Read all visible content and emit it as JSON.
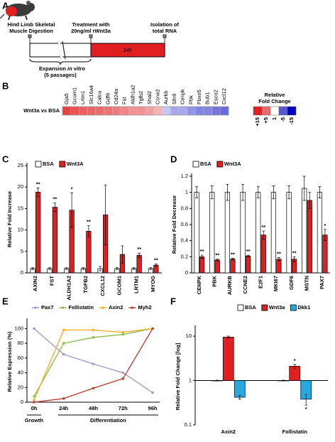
{
  "diagram": {
    "label": "A",
    "steps": [
      [
        "Hind Limb Skeletal",
        "Muscle Digestion"
      ],
      [
        "Treatment with",
        "20ng/ml rWnt3a"
      ],
      [
        "Isolation of",
        "total RNA"
      ]
    ],
    "bar_label": "24h",
    "expansion": "Expansion",
    "expansion_italic": "in vitro",
    "passages": "(5 passages)"
  },
  "chart_data": [
    {
      "label": "B",
      "type": "heatmap",
      "row_label": "Wnt3a vs BSA",
      "categories": [
        "Gja5",
        "Gcom1",
        "Lrtm1",
        "Slc16a4",
        "Calca",
        "Gdf6",
        "Cd24a",
        "Fst",
        "Aldh1a2",
        "Tgfb2",
        "Shal2",
        "Ccne2",
        "Aurkb",
        "Sfn9",
        "Cenpk",
        "Pbk",
        "Fbxo5",
        "Bub1",
        "Esco2",
        "Cxcl12"
      ],
      "values": [
        9,
        7,
        6,
        5.5,
        5,
        4.5,
        4,
        3.5,
        3,
        3,
        2.5,
        2,
        -1.5,
        -2,
        -2,
        -2.5,
        -3,
        -3,
        -3.5,
        -4
      ],
      "pos_color": "#e02020",
      "neg_color": "#0000c0",
      "legend_title": [
        "Relative",
        "Fold Change"
      ],
      "legend_ticks": [
        {
          "value": 15,
          "label": "+15"
        },
        {
          "value": 5,
          "label": "+5"
        },
        1,
        -5,
        -15
      ]
    },
    {
      "label": "C",
      "type": "bar",
      "y_label": "Relative Fold Increase",
      "categories": [
        "AXIN2",
        "FST",
        "ALDH1A2",
        "TGFB2",
        "CXCL12",
        "GCOM1",
        "LRTM1",
        "MYOG"
      ],
      "series": [
        {
          "name": "BSA",
          "color": "#ffffff",
          "values": [
            1,
            1,
            1,
            1,
            1,
            1,
            1,
            1
          ],
          "errors": [
            0.2,
            0.2,
            0.2,
            0.2,
            0.5,
            0.2,
            0.2,
            0.2
          ]
        },
        {
          "name": "Wnt3A",
          "color": "#e02020",
          "values": [
            18.8,
            15.3,
            14.6,
            9.7,
            13.5,
            4.3,
            4.1,
            1.8
          ],
          "errors": [
            1.0,
            1.0,
            4.0,
            1.3,
            7.0,
            2.0,
            0.5,
            0.3
          ],
          "stars": [
            "**",
            "**",
            "*",
            "**",
            null,
            null,
            "**",
            "**"
          ]
        }
      ],
      "ylim": [
        0,
        25
      ],
      "yticks": [
        0,
        5,
        10,
        15,
        20,
        25
      ],
      "legend": "top-left"
    },
    {
      "label": "D",
      "type": "bar",
      "y_label": "Relative Fold Decrease",
      "categories": [
        "CENPK",
        "PBK",
        "AURKB",
        "CCNE2",
        "E2F1",
        "MKI67",
        "GDF6",
        "MSTN",
        "PAX7"
      ],
      "series": [
        {
          "name": "BSA",
          "color": "#ffffff",
          "values": [
            1,
            1,
            1,
            1,
            1,
            1,
            1,
            1.05,
            1
          ],
          "errors": [
            0.07,
            0.08,
            0.1,
            0.1,
            0.07,
            0.08,
            0.08,
            0.15,
            0.07
          ]
        },
        {
          "name": "Wnt3A",
          "color": "#e02020",
          "values": [
            0.2,
            0.16,
            0.17,
            0.21,
            0.47,
            0.17,
            0.17,
            0.9,
            0.47
          ],
          "errors": [
            0.02,
            0.01,
            0.01,
            0.01,
            0.05,
            0.02,
            0.03,
            0.1,
            0.07
          ],
          "stars": [
            "**",
            "**",
            "**",
            "**",
            "**",
            "**",
            "**",
            null,
            "*"
          ]
        }
      ],
      "ylim": [
        0,
        1.2
      ],
      "yticks": [
        0,
        0.2,
        0.4,
        0.6,
        0.8,
        1,
        1.2
      ],
      "legend": "top-left"
    },
    {
      "label": "E",
      "type": "line",
      "y_label": "Relative Expression (%)",
      "categories": [
        "0h",
        "24h",
        "48h",
        "72h",
        "96h"
      ],
      "x_group_labels": [
        "Growth",
        "Differentiation"
      ],
      "series": [
        {
          "name": "Pax7",
          "color": "#a59ad0",
          "values": [
            100,
            65,
            52,
            40,
            13
          ]
        },
        {
          "name": "Follistatin",
          "color": "#8cbe4f",
          "values": [
            8,
            80,
            88,
            92,
            100
          ]
        },
        {
          "name": "Axin2",
          "color": "#f0b030",
          "values": [
            3,
            98,
            98,
            95,
            100
          ]
        },
        {
          "name": "Myh2",
          "color": "#b5473b",
          "values": [
            0,
            5,
            19,
            32,
            100
          ]
        }
      ],
      "ylim": [
        0,
        110
      ],
      "yticks": [
        0,
        20,
        40,
        60,
        80,
        100
      ],
      "legend": "top"
    },
    {
      "label": "F",
      "type": "bar",
      "y_label": "Relative Fold Change [log]",
      "log_scale": true,
      "categories": [
        "Axin2",
        "Follistatin"
      ],
      "series": [
        {
          "name": "BSA",
          "color": "#ffffff",
          "values": [
            1,
            1
          ],
          "errors": [
            0.02,
            0.02
          ]
        },
        {
          "name": "Wnt3a",
          "color": "#e02020",
          "values": [
            9.5,
            2.1
          ],
          "errors": [
            0.5,
            0.2
          ],
          "stars": [
            null,
            "*"
          ]
        },
        {
          "name": "Dkk1",
          "color": "#29a8e0",
          "values": [
            0.42,
            0.38
          ],
          "errors": [
            0.04,
            0.1
          ],
          "stars": [
            null,
            "*"
          ]
        }
      ],
      "ylim": [
        0.1,
        15
      ],
      "yticks": [
        0.1,
        1,
        10
      ],
      "legend": "top"
    }
  ]
}
